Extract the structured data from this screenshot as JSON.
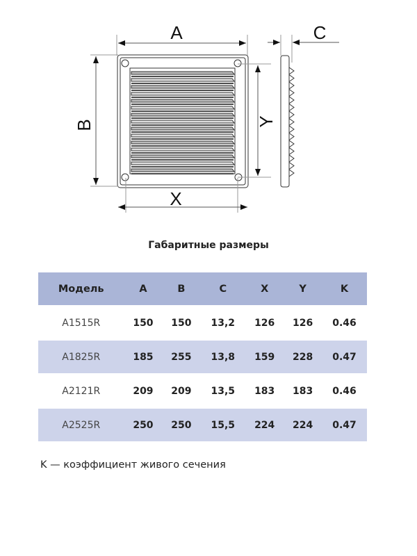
{
  "diagram": {
    "labels": {
      "a": "A",
      "b": "B",
      "c": "C",
      "x": "X",
      "y": "Y"
    }
  },
  "title": "Габаритные размеры",
  "table": {
    "headers": [
      "Модель",
      "A",
      "B",
      "C",
      "X",
      "Y",
      "K"
    ],
    "rows": [
      [
        "A1515R",
        "150",
        "150",
        "13,2",
        "126",
        "126",
        "0.46"
      ],
      [
        "A1825R",
        "185",
        "255",
        "13,8",
        "159",
        "228",
        "0.47"
      ],
      [
        "A2121R",
        "209",
        "209",
        "13,5",
        "183",
        "183",
        "0.46"
      ],
      [
        "A2525R",
        "250",
        "250",
        "15,5",
        "224",
        "224",
        "0.47"
      ]
    ],
    "colors": {
      "header": "#aab5d7",
      "alt_row": "#cdd3ea"
    }
  },
  "note": "K — коэффициент живого сечения"
}
